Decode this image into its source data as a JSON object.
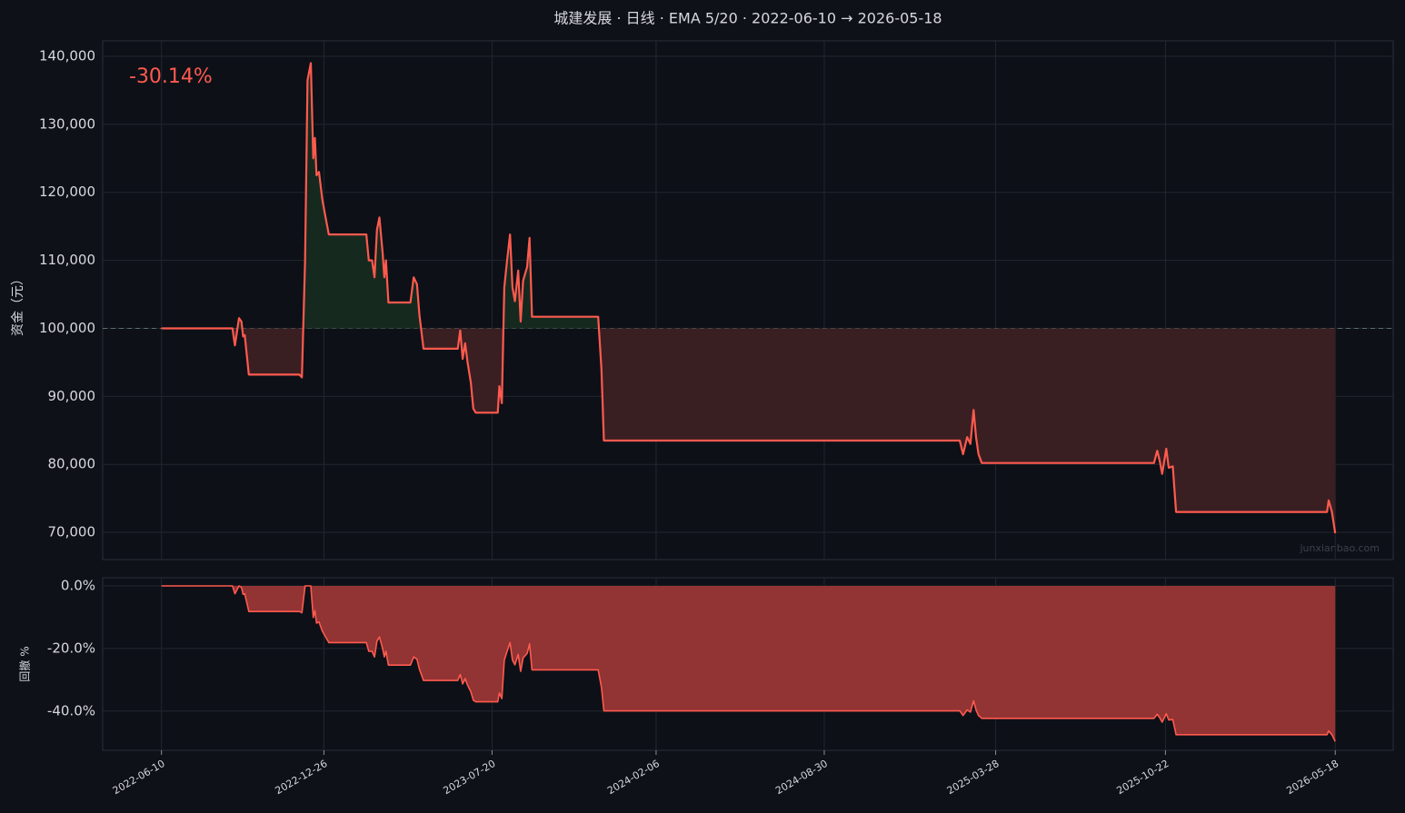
{
  "chart_data": [
    {
      "type": "line",
      "title": "城建发展 · 日线 · EMA 5/20 · 2022-06-10 → 2026-05-18",
      "ylabel": "资金（元）",
      "annotation": "-30.14%",
      "watermark": "junxianbao.com",
      "color": "#ff5a4e",
      "baseline": 100000,
      "grid": true,
      "xlim": [
        "2022-03-30",
        "2026-07-28"
      ],
      "ylim": [
        66000,
        142270
      ],
      "yticks": [
        {
          "value": 70000,
          "label": "70,000"
        },
        {
          "value": 80000,
          "label": "80,000"
        },
        {
          "value": 90000,
          "label": "90,000"
        },
        {
          "value": 100000,
          "label": "100,000"
        },
        {
          "value": 110000,
          "label": "110,000"
        },
        {
          "value": 120000,
          "label": "120,000"
        },
        {
          "value": 130000,
          "label": "130,000"
        },
        {
          "value": 140000,
          "label": "140,000"
        }
      ],
      "x": [
        "2022-06-10",
        "2022-09-05",
        "2022-09-08",
        "2022-09-13",
        "2022-09-16",
        "2022-09-18",
        "2022-09-20",
        "2022-09-25",
        "2022-11-26",
        "2022-11-29",
        "2022-12-03",
        "2022-12-06",
        "2022-12-10",
        "2022-12-13",
        "2022-12-15",
        "2022-12-17",
        "2022-12-20",
        "2022-12-24",
        "2022-12-27",
        "2023-01-01",
        "2023-02-16",
        "2023-02-19",
        "2023-02-23",
        "2023-02-26",
        "2023-03-01",
        "2023-03-04",
        "2023-03-08",
        "2023-03-10",
        "2023-03-12",
        "2023-03-15",
        "2023-04-11",
        "2023-04-15",
        "2023-04-19",
        "2023-04-22",
        "2023-04-27",
        "2023-06-08",
        "2023-06-11",
        "2023-06-14",
        "2023-06-17",
        "2023-06-20",
        "2023-06-24",
        "2023-06-27",
        "2023-06-30",
        "2023-07-27",
        "2023-07-29",
        "2023-08-01",
        "2023-08-04",
        "2023-08-07",
        "2023-08-11",
        "2023-08-14",
        "2023-08-17",
        "2023-08-21",
        "2023-08-24",
        "2023-08-27",
        "2023-09-01",
        "2023-09-04",
        "2023-09-07",
        "2023-11-27",
        "2023-12-01",
        "2023-12-04",
        "2025-02-12",
        "2025-02-16",
        "2025-02-21",
        "2025-02-25",
        "2025-03-01",
        "2025-03-04",
        "2025-03-07",
        "2025-03-11",
        "2025-10-08",
        "2025-10-12",
        "2025-10-15",
        "2025-10-18",
        "2025-10-23",
        "2025-10-26",
        "2025-10-31",
        "2025-11-04",
        "2026-05-08",
        "2026-05-10",
        "2026-05-14",
        "2026-05-18"
      ],
      "values": [
        100000,
        100000,
        97500,
        101500,
        101000,
        98800,
        99000,
        93200,
        93200,
        92800,
        110000,
        136500,
        139000,
        125000,
        128000,
        122500,
        123000,
        119000,
        117000,
        113800,
        113800,
        110000,
        110000,
        107500,
        114500,
        116300,
        111000,
        107500,
        110000,
        103800,
        103800,
        107500,
        106500,
        102000,
        97000,
        97000,
        99700,
        95500,
        97800,
        95000,
        92000,
        88200,
        87600,
        87600,
        91500,
        89000,
        106000,
        109500,
        113800,
        106000,
        104000,
        108500,
        101000,
        107000,
        109000,
        113300,
        101700,
        101700,
        94000,
        83500,
        83500,
        81500,
        84000,
        83000,
        88000,
        84000,
        81500,
        80200,
        80200,
        82000,
        80500,
        78600,
        82300,
        79500,
        79700,
        73000,
        73000,
        74700,
        73000,
        69860
      ]
    },
    {
      "type": "area",
      "ylabel": "回撤 %",
      "color": "#ff5a4e",
      "fill": "#9a3636",
      "grid": true,
      "xlim": [
        "2022-03-30",
        "2026-07-28"
      ],
      "xticks": [
        "2022-06-10",
        "2022-12-26",
        "2023-07-20",
        "2024-02-06",
        "2024-08-30",
        "2025-03-28",
        "2025-10-22",
        "2026-05-18"
      ],
      "ylim": [
        -52.5,
        2.6
      ],
      "yticks": [
        {
          "value": -40,
          "label": "-40.0%"
        },
        {
          "value": -20,
          "label": "-20.0%"
        },
        {
          "value": 0,
          "label": "0.0%"
        }
      ],
      "x": [
        "2022-06-10",
        "2022-09-05",
        "2022-09-08",
        "2022-09-13",
        "2022-09-16",
        "2022-09-18",
        "2022-09-20",
        "2022-09-25",
        "2022-11-26",
        "2022-11-29",
        "2022-12-03",
        "2022-12-06",
        "2022-12-10",
        "2022-12-13",
        "2022-12-15",
        "2022-12-17",
        "2022-12-20",
        "2022-12-24",
        "2022-12-27",
        "2023-01-01",
        "2023-02-16",
        "2023-02-19",
        "2023-02-23",
        "2023-02-26",
        "2023-03-01",
        "2023-03-04",
        "2023-03-08",
        "2023-03-10",
        "2023-03-12",
        "2023-03-15",
        "2023-04-11",
        "2023-04-15",
        "2023-04-19",
        "2023-04-22",
        "2023-04-27",
        "2023-06-08",
        "2023-06-11",
        "2023-06-14",
        "2023-06-17",
        "2023-06-20",
        "2023-06-24",
        "2023-06-27",
        "2023-06-30",
        "2023-07-27",
        "2023-07-29",
        "2023-08-01",
        "2023-08-04",
        "2023-08-07",
        "2023-08-11",
        "2023-08-14",
        "2023-08-17",
        "2023-08-21",
        "2023-08-24",
        "2023-08-27",
        "2023-09-01",
        "2023-09-04",
        "2023-09-07",
        "2023-11-27",
        "2023-12-01",
        "2023-12-04",
        "2025-02-12",
        "2025-02-16",
        "2025-02-21",
        "2025-02-25",
        "2025-03-01",
        "2025-03-04",
        "2025-03-07",
        "2025-03-11",
        "2025-10-08",
        "2025-10-12",
        "2025-10-15",
        "2025-10-18",
        "2025-10-23",
        "2025-10-26",
        "2025-10-31",
        "2025-11-04",
        "2026-05-08",
        "2026-05-10",
        "2026-05-14",
        "2026-05-18"
      ],
      "values": [
        0,
        0,
        -2.5,
        0,
        -0.5,
        -2.7,
        -2.5,
        -8.2,
        -8.2,
        -8.6,
        0,
        0,
        0,
        -10.1,
        -7.9,
        -11.9,
        -11.5,
        -14.4,
        -15.8,
        -18.1,
        -18.1,
        -20.9,
        -20.9,
        -22.7,
        -17.6,
        -16.3,
        -20.1,
        -22.7,
        -20.9,
        -25.3,
        -25.3,
        -22.7,
        -23.4,
        -26.6,
        -30.2,
        -30.2,
        -28.3,
        -31.3,
        -29.6,
        -31.7,
        -33.8,
        -36.5,
        -37.0,
        -37.0,
        -34.2,
        -36.0,
        -23.7,
        -21.2,
        -18.1,
        -23.7,
        -25.2,
        -21.9,
        -27.3,
        -23.0,
        -21.6,
        -18.5,
        -26.8,
        -26.8,
        -32.4,
        -39.9,
        -39.9,
        -41.4,
        -39.6,
        -40.3,
        -36.7,
        -39.6,
        -41.4,
        -42.3,
        -42.3,
        -41.0,
        -42.1,
        -43.5,
        -40.8,
        -42.8,
        -42.7,
        -47.5,
        -47.5,
        -46.3,
        -47.5,
        -49.7
      ]
    }
  ]
}
